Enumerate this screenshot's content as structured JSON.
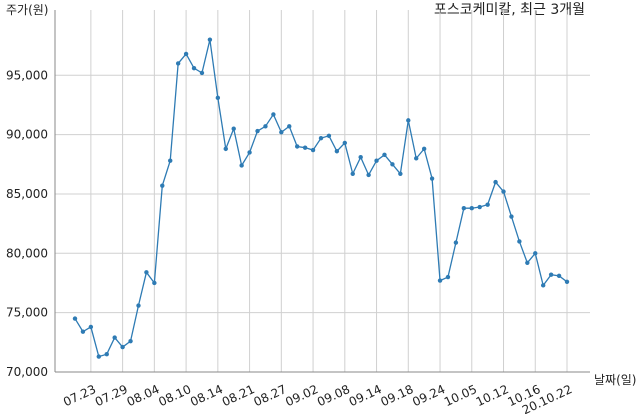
{
  "chart_data": {
    "type": "line",
    "title": "포스코케미칼, 최근 3개월",
    "y_label": "주가(원)",
    "x_label": "날짜(일)",
    "categories": [
      null,
      null,
      "07.23",
      null,
      null,
      null,
      "07.29",
      null,
      null,
      null,
      "08.04",
      null,
      null,
      null,
      "08.10",
      null,
      null,
      null,
      "08.14",
      null,
      null,
      null,
      "08.21",
      null,
      null,
      null,
      "08.27",
      null,
      null,
      null,
      "09.02",
      null,
      null,
      null,
      "09.08",
      null,
      null,
      null,
      "09.14",
      null,
      null,
      null,
      "09.18",
      null,
      null,
      null,
      "09.24",
      null,
      null,
      null,
      "10.05",
      null,
      null,
      null,
      "10.12",
      null,
      null,
      null,
      "10.16",
      null,
      null,
      null,
      "20.10.22"
    ],
    "values": [
      74500,
      73400,
      73800,
      71300,
      71500,
      72900,
      72100,
      72600,
      75600,
      78400,
      77500,
      85700,
      87800,
      96000,
      96800,
      95600,
      95200,
      98000,
      93100,
      88800,
      90500,
      87400,
      88500,
      90300,
      90700,
      91700,
      90200,
      90700,
      89000,
      88900,
      88700,
      89700,
      89900,
      88600,
      89300,
      86700,
      88100,
      86600,
      87800,
      88300,
      87500,
      86700,
      91200,
      88000,
      88800,
      86300,
      77700,
      78000,
      80900,
      83800,
      83800,
      83900,
      84100,
      86000,
      85200,
      83100,
      81000,
      79200,
      80000,
      77300,
      78200,
      78100,
      77600
    ],
    "color": "#2e7bb4",
    "ylim": [
      70000,
      100500
    ],
    "yticks": [
      {
        "value": 70000,
        "label": "70,000"
      },
      {
        "value": 75000,
        "label": "75,000"
      },
      {
        "value": 80000,
        "label": "80,000"
      },
      {
        "value": 85000,
        "label": "85,000"
      },
      {
        "value": 90000,
        "label": "90,000"
      },
      {
        "value": 95000,
        "label": "95,000"
      }
    ],
    "grid": true
  }
}
